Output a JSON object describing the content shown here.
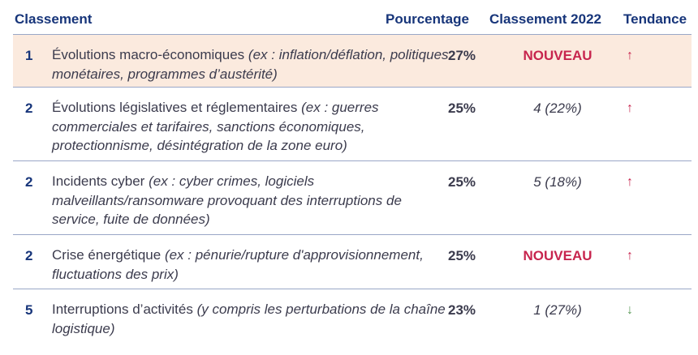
{
  "header": {
    "rank": "Classement",
    "percentage": "Pourcentage",
    "rank2022": "Classement 2022",
    "trend": "Tendance"
  },
  "rows": [
    {
      "rank": "1",
      "title": "Évolutions macro-économiques",
      "example": "(ex : inflation/déflation, politiques monétaires, programmes d’austérité)",
      "percentage": "27%",
      "rank2022": "NOUVEAU",
      "trend_icon": "arrow-up",
      "trend_glyph": "↑",
      "highlight_color": "#fbeade"
    },
    {
      "rank": "2",
      "title": "Évolutions législatives et réglementaires",
      "example": "(ex : guerres commerciales et tarifaires, sanctions économiques, protectionnisme, désintégration de la zone euro)",
      "percentage": "25%",
      "rank2022": "4 (22%)",
      "trend_icon": "arrow-up",
      "trend_glyph": "↑"
    },
    {
      "rank": "2",
      "title": "Incidents cyber",
      "example": "(ex : cyber crimes, logiciels malveillants/ransomware provoquant des interruptions de service, fuite de données)",
      "percentage": "25%",
      "rank2022": "5 (18%)",
      "trend_icon": "arrow-up",
      "trend_glyph": "↑"
    },
    {
      "rank": "2",
      "title": "Crise énergétique",
      "example": "(ex : pénurie/rupture d'approvisionnement, fluctuations des prix)",
      "percentage": "25%",
      "rank2022": "NOUVEAU",
      "trend_icon": "arrow-up",
      "trend_glyph": "↑"
    },
    {
      "rank": "5",
      "title": "Interruptions d’activités",
      "example": "(y compris les perturbations de la chaîne logistique)",
      "percentage": "23%",
      "rank2022": "1 (27%)",
      "trend_icon": "arrow-down",
      "trend_glyph": "↓"
    }
  ],
  "colors": {
    "header_text": "#17357a",
    "new_text": "#c7254e",
    "trend_up": "#c7254e",
    "trend_down": "#5a9a57",
    "row_line": "#9aa7c7"
  }
}
